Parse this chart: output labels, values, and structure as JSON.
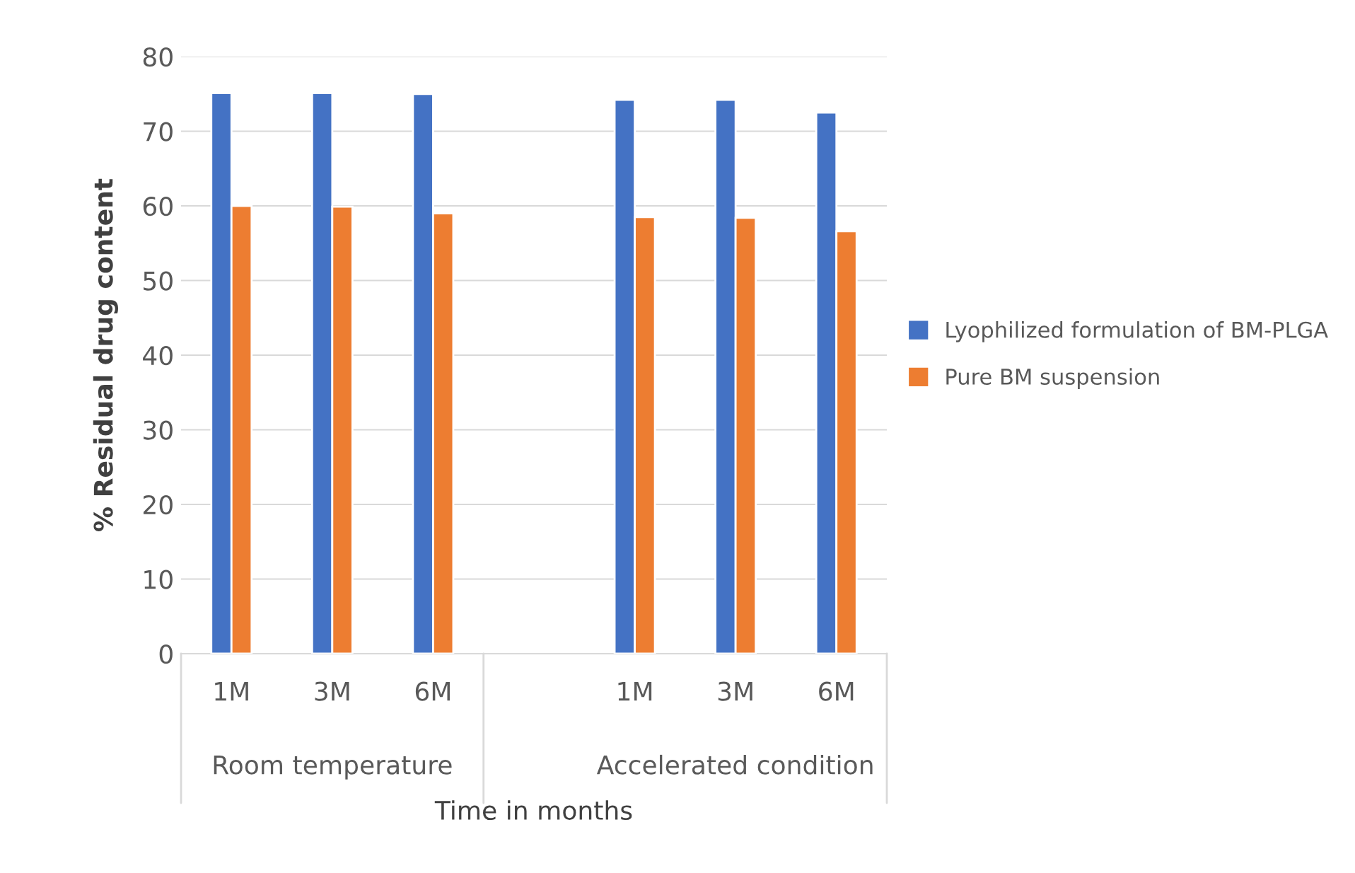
{
  "chart_data": {
    "type": "bar",
    "categories": [
      "1M",
      "3M",
      "6M",
      null,
      "1M",
      "3M",
      "6M"
    ],
    "series": [
      {
        "name": "Lyophilized formulation of BM-PLGA",
        "color": "#4472c4",
        "values": [
          75.1,
          75.1,
          75.0,
          null,
          74.2,
          74.2,
          72.5
        ]
      },
      {
        "name": "Pure BM suspension",
        "color": "#ed7d31",
        "values": [
          60.0,
          59.9,
          59.0,
          null,
          58.5,
          58.4,
          56.6
        ]
      }
    ],
    "xlabel": "Time in months",
    "ylabel": "% Residual drug content",
    "annotations": [
      "Room temperature",
      "Accelerated condition"
    ],
    "ylim": [
      0,
      80
    ],
    "yticks": [
      0,
      10,
      20,
      30,
      40,
      50,
      60,
      70,
      80
    ],
    "grid": "y",
    "legend": "right"
  }
}
